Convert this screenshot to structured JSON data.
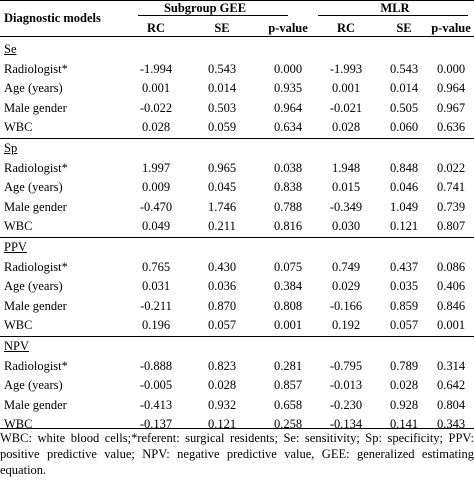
{
  "header": {
    "row_label": "Diagnostic models",
    "groups": [
      "Subgroup GEE",
      "MLR"
    ],
    "columns": [
      "RC",
      "SE",
      "p-value",
      "RC",
      "SE",
      "p-value"
    ]
  },
  "sections": [
    {
      "name": "Se",
      "rows": [
        {
          "label": "Radiologist*",
          "values": [
            "-1.994",
            "0.543",
            "0.000",
            "-1.993",
            "0.543",
            "0.000"
          ]
        },
        {
          "label": "Age (years)",
          "values": [
            "0.001",
            "0.014",
            "0.935",
            "0.001",
            "0.014",
            "0.964"
          ]
        },
        {
          "label": "Male gender",
          "values": [
            "-0.022",
            "0.503",
            "0.964",
            "-0.021",
            "0.505",
            "0.967"
          ]
        },
        {
          "label": "WBC",
          "values": [
            "0.028",
            "0.059",
            "0.634",
            "0.028",
            "0.060",
            "0.636"
          ]
        }
      ]
    },
    {
      "name": "Sp",
      "rows": [
        {
          "label": "Radiologist*",
          "values": [
            "1.997",
            "0.965",
            "0.038",
            "1.948",
            "0.848",
            "0.022"
          ]
        },
        {
          "label": "Age (years)",
          "values": [
            "0.009",
            "0.045",
            "0.838",
            "0.015",
            "0.046",
            "0.741"
          ]
        },
        {
          "label": "Male gender",
          "values": [
            "-0.470",
            "1.746",
            "0.788",
            "-0.349",
            "1.049",
            "0.739"
          ]
        },
        {
          "label": "WBC",
          "values": [
            "0.049",
            "0.211",
            "0.816",
            "0.030",
            "0.121",
            "0.807"
          ]
        }
      ]
    },
    {
      "name": "PPV",
      "rows": [
        {
          "label": "Radiologist*",
          "values": [
            "0.765",
            "0.430",
            "0.075",
            "0.749",
            "0.437",
            "0.086"
          ]
        },
        {
          "label": "Age (years)",
          "values": [
            "0.031",
            "0.036",
            "0.384",
            "0.029",
            "0.035",
            "0.406"
          ]
        },
        {
          "label": "Male gender",
          "values": [
            "-0.211",
            "0.870",
            "0.808",
            "-0.166",
            "0.859",
            "0.846"
          ]
        },
        {
          "label": "WBC",
          "values": [
            "0.196",
            "0.057",
            "0.001",
            "0.192",
            "0.057",
            "0.001"
          ]
        }
      ]
    },
    {
      "name": "NPV",
      "rows": [
        {
          "label": "Radiologist*",
          "values": [
            "-0.888",
            "0.823",
            "0.281",
            "-0.795",
            "0.789",
            "0.314"
          ]
        },
        {
          "label": "Age (years)",
          "values": [
            "-0.005",
            "0.028",
            "0.857",
            "-0.013",
            "0.028",
            "0.642"
          ]
        },
        {
          "label": "Male gender",
          "values": [
            "-0.413",
            "0.932",
            "0.658",
            "-0.230",
            "0.928",
            "0.804"
          ]
        },
        {
          "label": "WBC",
          "values": [
            "-0.137",
            "0.121",
            "0.258",
            "-0.134",
            "0.141",
            "0.343"
          ]
        }
      ]
    }
  ],
  "footnote": "WBC: white blood cells;*referent: surgical residents; Se: sensitivity; Sp: specificity; PPV: positive predictive value; NPV: negative predictive value, GEE: generalized estimating equation."
}
